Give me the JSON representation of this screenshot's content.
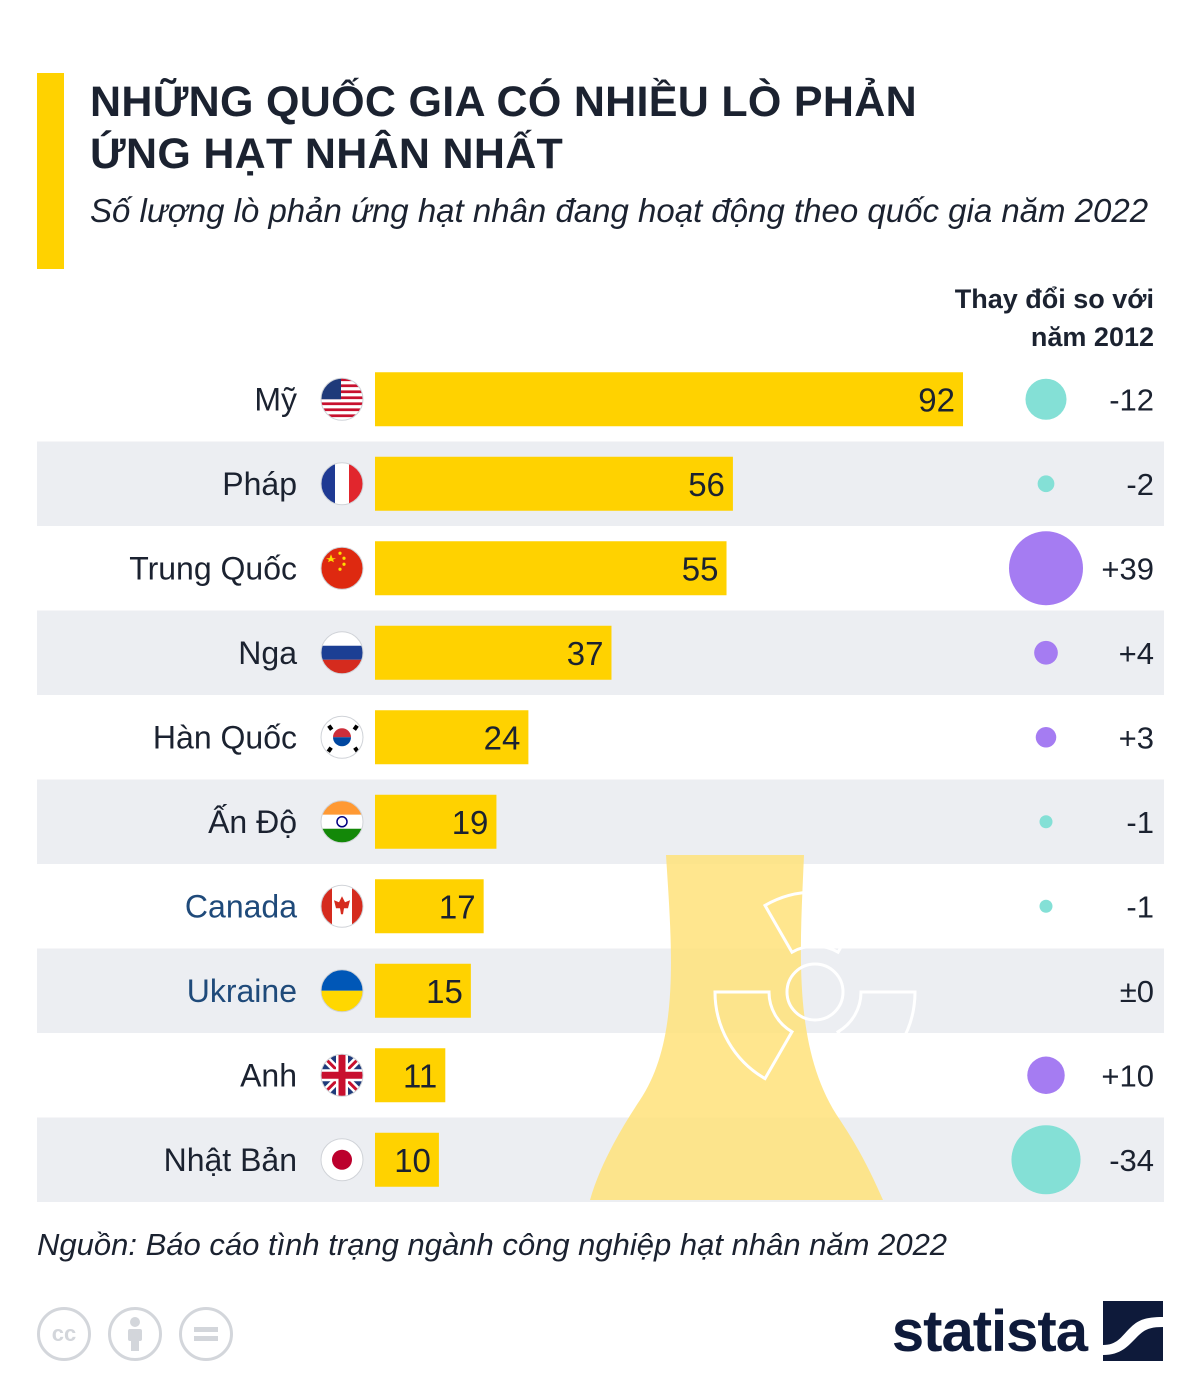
{
  "title": "NHỮNG QUỐC GIA CÓ NHIỀU LÒ PHẢN ỨNG HẠT NHÂN NHẤT",
  "subtitle": "Số lượng lò phản ứng hạt nhân đang hoạt động theo quốc gia năm 2022",
  "change_header": "Thay đổi so với năm 2012",
  "source": "Nguồn: Báo cáo tình trạng ngành công nghiệp hạt nhân năm 2022",
  "brand": "statista",
  "colors": {
    "accent": "#ffd200",
    "bar": "#ffd200",
    "row_stripe": "#eceef2",
    "decrease": "#84e0d6",
    "increase": "#a57cf2",
    "text": "#1b2230",
    "label_blue": "#1f4a7a"
  },
  "icons": {
    "license": [
      "cc-icon",
      "attribution-icon",
      "no-derivatives-icon"
    ],
    "background": "nuclear-cooling-tower-radiation-icon"
  },
  "chart_data": {
    "type": "bar",
    "orientation": "horizontal",
    "categories": [
      "Mỹ",
      "Pháp",
      "Trung Quốc",
      "Nga",
      "Hàn Quốc",
      "Ấn Độ",
      "Canada",
      "Ukraine",
      "Anh",
      "Nhật Bản"
    ],
    "flags": [
      "us-flag-icon",
      "france-flag-icon",
      "china-flag-icon",
      "russia-flag-icon",
      "south-korea-flag-icon",
      "india-flag-icon",
      "canada-flag-icon",
      "ukraine-flag-icon",
      "uk-flag-icon",
      "japan-flag-icon"
    ],
    "values": [
      92,
      56,
      55,
      37,
      24,
      19,
      17,
      15,
      11,
      10
    ],
    "change_values": [
      -12,
      -2,
      39,
      4,
      3,
      -1,
      -1,
      0,
      10,
      -34
    ],
    "change_labels": [
      "-12",
      "-2",
      "+39",
      "+4",
      "+3",
      "-1",
      "-1",
      "±0",
      "+10",
      "-34"
    ],
    "xlim": [
      0,
      92
    ],
    "grid": false,
    "legend": "none"
  }
}
